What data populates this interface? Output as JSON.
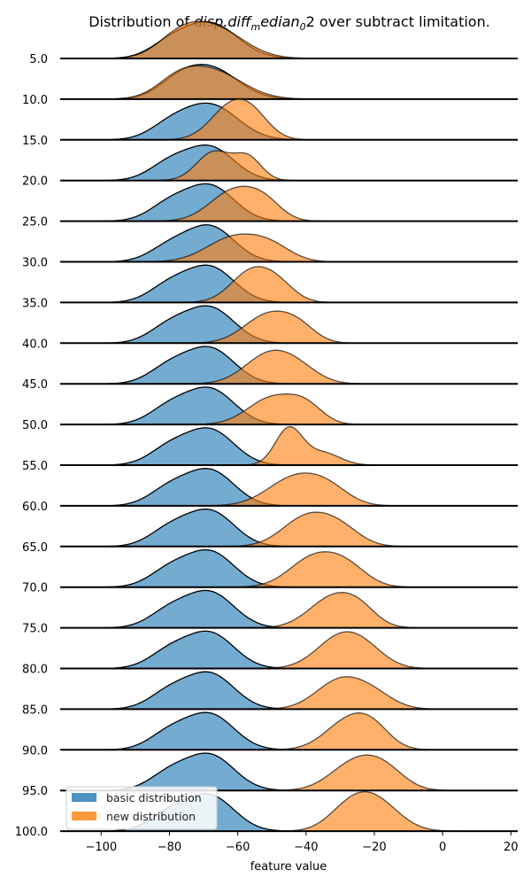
{
  "chart_data": {
    "type": "ridgeline",
    "title": "Distribution of disp.diff_median_02 over subtract limitation.",
    "title_parts": {
      "prefix": "Distribution of ",
      "math_a": "disp.diff",
      "sub1": "m",
      "math_b": "edian",
      "sub2": "0",
      "math_c": "2",
      "suffix": " over subtract limitation."
    },
    "xlabel": "feature value",
    "xlim": [
      -112,
      22
    ],
    "xticks": [
      "−100",
      "−80",
      "−60",
      "−40",
      "−20",
      "0",
      "20"
    ],
    "xtick_values": [
      -100,
      -80,
      -60,
      -40,
      -20,
      0,
      20
    ],
    "categories": [
      "5.0",
      "10.0",
      "15.0",
      "20.0",
      "25.0",
      "30.0",
      "35.0",
      "40.0",
      "45.0",
      "50.0",
      "55.0",
      "60.0",
      "65.0",
      "70.0",
      "75.0",
      "80.0",
      "85.0",
      "90.0",
      "95.0",
      "100.0"
    ],
    "colors": {
      "basic": "#1f77b4",
      "new": "#ff7f0e"
    },
    "legend": {
      "position": "lower-left",
      "entries": [
        "basic distribution",
        "new distribution"
      ]
    },
    "series": [
      {
        "name": "basic distribution",
        "peaks": [
          [
            [
              -68,
              0.85,
              8
            ],
            [
              -80,
              0.3,
              6
            ]
          ],
          [
            [
              -68,
              0.75,
              8
            ],
            [
              -78,
              0.3,
              6
            ]
          ],
          [
            [
              -68,
              0.85,
              8
            ],
            [
              -80,
              0.3,
              6
            ]
          ],
          [
            [
              -68,
              0.8,
              7
            ],
            [
              -80,
              0.4,
              6
            ]
          ],
          [
            [
              -68,
              0.85,
              7
            ],
            [
              -80,
              0.4,
              6
            ]
          ],
          [
            [
              -68,
              0.85,
              7
            ],
            [
              -80,
              0.35,
              6
            ]
          ],
          [
            [
              -68,
              0.85,
              7
            ],
            [
              -80,
              0.4,
              6
            ]
          ],
          [
            [
              -68,
              0.85,
              7
            ],
            [
              -80,
              0.4,
              6
            ]
          ],
          [
            [
              -68,
              0.85,
              7
            ],
            [
              -80,
              0.4,
              6
            ]
          ],
          [
            [
              -68,
              0.85,
              7
            ],
            [
              -80,
              0.4,
              6
            ]
          ],
          [
            [
              -68,
              0.85,
              7
            ],
            [
              -80,
              0.4,
              6
            ]
          ],
          [
            [
              -68,
              0.85,
              7
            ],
            [
              -80,
              0.4,
              6
            ]
          ],
          [
            [
              -68,
              0.85,
              7
            ],
            [
              -80,
              0.4,
              6
            ]
          ],
          [
            [
              -68,
              0.85,
              7
            ],
            [
              -80,
              0.4,
              6
            ]
          ],
          [
            [
              -68,
              0.85,
              7
            ],
            [
              -80,
              0.4,
              6
            ]
          ],
          [
            [
              -68,
              0.85,
              7
            ],
            [
              -80,
              0.4,
              6
            ]
          ],
          [
            [
              -68,
              0.85,
              7
            ],
            [
              -80,
              0.4,
              6
            ]
          ],
          [
            [
              -68,
              0.85,
              7
            ],
            [
              -80,
              0.4,
              6
            ]
          ],
          [
            [
              -68,
              0.85,
              7
            ],
            [
              -80,
              0.4,
              6
            ]
          ],
          [
            [
              -68,
              0.85,
              7
            ],
            [
              -80,
              0.4,
              6
            ]
          ]
        ]
      },
      {
        "name": "new distribution",
        "peaks": [
          [
            [
              -68,
              0.8,
              9
            ],
            [
              -78,
              0.3,
              6
            ]
          ],
          [
            [
              -68,
              0.7,
              9
            ],
            [
              -78,
              0.3,
              6
            ]
          ],
          [
            [
              -62,
              0.8,
              6
            ],
            [
              -55,
              0.4,
              5
            ]
          ],
          [
            [
              -67,
              0.7,
              5
            ],
            [
              -57,
              0.55,
              4
            ]
          ],
          [
            [
              -61,
              0.75,
              7
            ],
            [
              -52,
              0.35,
              5
            ]
          ],
          [
            [
              -61,
              0.6,
              8
            ],
            [
              -50,
              0.3,
              6
            ]
          ],
          [
            [
              -56,
              0.75,
              6
            ],
            [
              -48,
              0.35,
              5
            ]
          ],
          [
            [
              -51,
              0.7,
              7
            ],
            [
              -42,
              0.3,
              5
            ]
          ],
          [
            [
              -51,
              0.7,
              7
            ],
            [
              -42,
              0.3,
              6
            ]
          ],
          [
            [
              -50,
              0.65,
              7
            ],
            [
              -40,
              0.4,
              5
            ]
          ],
          [
            [
              -45,
              0.9,
              4
            ],
            [
              -35,
              0.3,
              5
            ]
          ],
          [
            [
              -43,
              0.7,
              8
            ],
            [
              -33,
              0.3,
              6
            ]
          ],
          [
            [
              -40,
              0.7,
              7
            ],
            [
              -30,
              0.4,
              6
            ]
          ],
          [
            [
              -38,
              0.7,
              7
            ],
            [
              -28,
              0.45,
              6
            ]
          ],
          [
            [
              -32,
              0.75,
              7
            ],
            [
              -24,
              0.3,
              5
            ]
          ],
          [
            [
              -30,
              0.75,
              7
            ],
            [
              -22,
              0.3,
              6
            ]
          ],
          [
            [
              -30,
              0.7,
              7
            ],
            [
              -20,
              0.3,
              6
            ]
          ],
          [
            [
              -27,
              0.75,
              7
            ],
            [
              -20,
              0.3,
              5
            ]
          ],
          [
            [
              -26,
              0.65,
              7
            ],
            [
              -17,
              0.45,
              6
            ]
          ],
          [
            [
              -20,
              0.75,
              7
            ],
            [
              -28,
              0.4,
              6
            ]
          ]
        ]
      }
    ]
  }
}
